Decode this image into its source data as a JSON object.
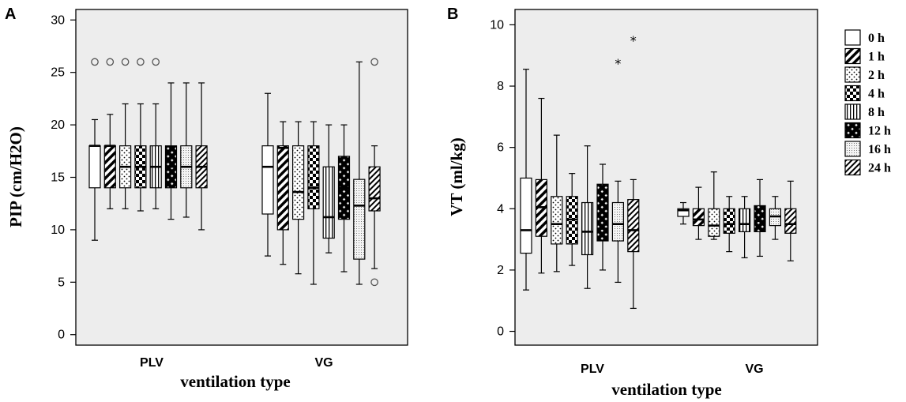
{
  "legend": {
    "items": [
      {
        "label": "0 h",
        "pattern": "blank"
      },
      {
        "label": "1 h",
        "pattern": "diag-thick"
      },
      {
        "label": "2 h",
        "pattern": "dots"
      },
      {
        "label": "4 h",
        "pattern": "checker"
      },
      {
        "label": "8 h",
        "pattern": "vlines"
      },
      {
        "label": "12 h",
        "pattern": "crosshatch"
      },
      {
        "label": "16 h",
        "pattern": "stipple"
      },
      {
        "label": "24 h",
        "pattern": "diag-thin"
      }
    ]
  },
  "colors": {
    "plot_bg": "#ededed",
    "box_fill": "#ffffff",
    "line": "#000000",
    "outlier": "#555555"
  },
  "chart_data": [
    {
      "type": "box",
      "panel": "A",
      "xlabel": "ventilation type",
      "ylabel": "PIP (cm/H2O)",
      "ylim": [
        -1,
        31
      ],
      "yticks": [
        0,
        5,
        10,
        15,
        20,
        25,
        30
      ],
      "categories": [
        "PLV",
        "VG"
      ],
      "series": [
        {
          "name": "0 h",
          "boxes": [
            {
              "min": 9,
              "q1": 14,
              "median": 18,
              "q3": 18,
              "max": 20.5,
              "outliers": [
                26
              ]
            },
            {
              "min": 7.5,
              "q1": 11.5,
              "median": 16,
              "q3": 18,
              "max": 23,
              "outliers": []
            }
          ]
        },
        {
          "name": "1 h",
          "boxes": [
            {
              "min": 12,
              "q1": 14,
              "median": 18,
              "q3": 18,
              "max": 21,
              "outliers": [
                26
              ]
            },
            {
              "min": 6.7,
              "q1": 10,
              "median": 17.8,
              "q3": 18,
              "max": 20.3,
              "outliers": []
            }
          ]
        },
        {
          "name": "2 h",
          "boxes": [
            {
              "min": 12,
              "q1": 14,
              "median": 16,
              "q3": 18,
              "max": 22,
              "outliers": [
                26
              ]
            },
            {
              "min": 5.8,
              "q1": 11,
              "median": 13.6,
              "q3": 18,
              "max": 20.3,
              "outliers": []
            }
          ]
        },
        {
          "name": "4 h",
          "boxes": [
            {
              "min": 11.8,
              "q1": 14,
              "median": 16,
              "q3": 18,
              "max": 22,
              "outliers": [
                26
              ]
            },
            {
              "min": 4.8,
              "q1": 12,
              "median": 14,
              "q3": 18,
              "max": 20.3,
              "outliers": []
            }
          ]
        },
        {
          "name": "8 h",
          "boxes": [
            {
              "min": 12,
              "q1": 14,
              "median": 16,
              "q3": 18,
              "max": 22,
              "outliers": [
                26
              ]
            },
            {
              "min": 7.8,
              "q1": 9.2,
              "median": 11.2,
              "q3": 16,
              "max": 20,
              "outliers": []
            }
          ]
        },
        {
          "name": "12 h",
          "boxes": [
            {
              "min": 11,
              "q1": 14,
              "median": 16,
              "q3": 18,
              "max": 24,
              "outliers": []
            },
            {
              "min": 6,
              "q1": 11,
              "median": 14,
              "q3": 17,
              "max": 20,
              "outliers": []
            }
          ]
        },
        {
          "name": "16 h",
          "boxes": [
            {
              "min": 11.2,
              "q1": 14,
              "median": 16,
              "q3": 18,
              "max": 24,
              "outliers": []
            },
            {
              "min": 4.8,
              "q1": 7.2,
              "median": 12.3,
              "q3": 14.8,
              "max": 26,
              "outliers": []
            }
          ]
        },
        {
          "name": "24 h",
          "boxes": [
            {
              "min": 10,
              "q1": 14,
              "median": 16,
              "q3": 18,
              "max": 24,
              "outliers": []
            },
            {
              "min": 6.3,
              "q1": 11.8,
              "median": 13,
              "q3": 16,
              "max": 18,
              "outliers": [
                26,
                5
              ]
            }
          ]
        }
      ]
    },
    {
      "type": "box",
      "panel": "B",
      "xlabel": "ventilation type",
      "ylabel": "VT (ml/kg)",
      "ylim": [
        -0.45,
        10.5
      ],
      "yticks": [
        0,
        2,
        4,
        6,
        8,
        10
      ],
      "categories": [
        "PLV",
        "VG"
      ],
      "series": [
        {
          "name": "0 h",
          "boxes": [
            {
              "min": 1.35,
              "q1": 2.55,
              "median": 3.3,
              "q3": 5,
              "max": 8.55,
              "outliers": []
            },
            {
              "min": 3.5,
              "q1": 3.75,
              "median": 3.95,
              "q3": 4,
              "max": 4.2,
              "outliers": []
            }
          ]
        },
        {
          "name": "1 h",
          "boxes": [
            {
              "min": 1.9,
              "q1": 3.1,
              "median": 4.05,
              "q3": 4.95,
              "max": 7.6,
              "outliers": []
            },
            {
              "min": 3,
              "q1": 3.45,
              "median": 3.65,
              "q3": 4,
              "max": 4.7,
              "outliers": []
            }
          ]
        },
        {
          "name": "2 h",
          "boxes": [
            {
              "min": 1.95,
              "q1": 2.85,
              "median": 3.5,
              "q3": 4.4,
              "max": 6.4,
              "outliers": []
            },
            {
              "min": 3,
              "q1": 3.1,
              "median": 3.45,
              "q3": 4,
              "max": 5.2,
              "outliers": []
            }
          ]
        },
        {
          "name": "4 h",
          "boxes": [
            {
              "min": 2.15,
              "q1": 2.85,
              "median": 3.65,
              "q3": 4.4,
              "max": 5.15,
              "outliers": []
            },
            {
              "min": 2.6,
              "q1": 3.2,
              "median": 3.5,
              "q3": 4,
              "max": 4.4,
              "outliers": []
            }
          ]
        },
        {
          "name": "8 h",
          "boxes": [
            {
              "min": 1.4,
              "q1": 2.5,
              "median": 3.25,
              "q3": 4.2,
              "max": 6.05,
              "outliers": []
            },
            {
              "min": 2.4,
              "q1": 3.25,
              "median": 3.5,
              "q3": 4,
              "max": 4.4,
              "outliers": []
            }
          ]
        },
        {
          "name": "12 h",
          "boxes": [
            {
              "min": 2,
              "q1": 2.95,
              "median": 3.35,
              "q3": 4.8,
              "max": 5.45,
              "outliers": []
            },
            {
              "min": 2.45,
              "q1": 3.25,
              "median": 3.6,
              "q3": 4.1,
              "max": 4.95,
              "outliers": []
            }
          ]
        },
        {
          "name": "16 h",
          "boxes": [
            {
              "min": 1.6,
              "q1": 2.95,
              "median": 3.5,
              "q3": 4.2,
              "max": 4.9,
              "outliers": [
                8.75
              ]
            },
            {
              "min": 3,
              "q1": 3.45,
              "median": 3.75,
              "q3": 4,
              "max": 4.4,
              "outliers": []
            }
          ]
        },
        {
          "name": "24 h",
          "boxes": [
            {
              "min": 0.75,
              "q1": 2.6,
              "median": 3.3,
              "q3": 4.3,
              "max": 4.95,
              "outliers": [
                9.5
              ]
            },
            {
              "min": 2.3,
              "q1": 3.2,
              "median": 3.5,
              "q3": 4,
              "max": 4.9,
              "outliers": []
            }
          ]
        }
      ]
    }
  ]
}
